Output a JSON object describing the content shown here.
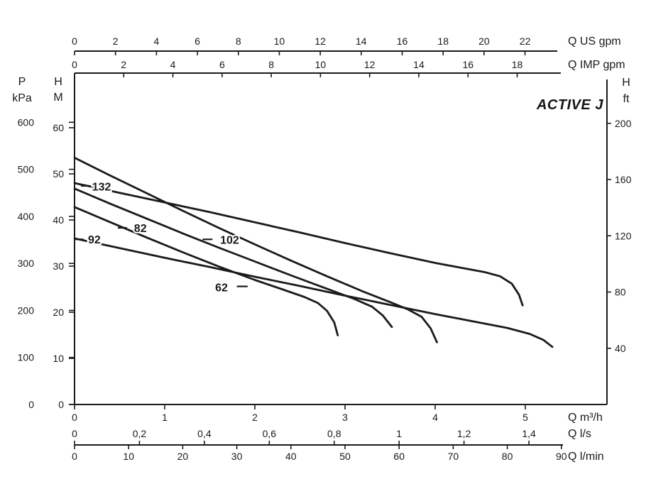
{
  "title": "ACTIVE J",
  "colors": {
    "ink": "#1a1a1a",
    "background": "#ffffff"
  },
  "chart_data": {
    "type": "line",
    "title": "ACTIVE J",
    "x_base_unit": "m³/h",
    "y_base_unit": "m",
    "x_range_m3h": [
      0,
      5.9
    ],
    "y_range_m": [
      0,
      71.8
    ],
    "grid": false,
    "legend": "inline-curve-labels",
    "flow_axes": [
      {
        "id": "us_gpm",
        "label": "Q US gpm",
        "position": "top1",
        "m3h_per_unit": 0.22712,
        "tick_values": [
          0,
          2,
          4,
          6,
          8,
          10,
          12,
          14,
          16,
          18,
          20,
          22
        ],
        "ticks": [
          "0",
          "2",
          "4",
          "6",
          "8",
          "10",
          "12",
          "14",
          "16",
          "18",
          "20",
          "22"
        ]
      },
      {
        "id": "imp_gpm",
        "label": "Q IMP gpm",
        "position": "top2",
        "m3h_per_unit": 0.27276,
        "tick_values": [
          0,
          2,
          4,
          6,
          8,
          10,
          12,
          14,
          16,
          18
        ],
        "ticks": [
          "0",
          "2",
          "4",
          "6",
          "8",
          "10",
          "12",
          "14",
          "16",
          "18"
        ]
      },
      {
        "id": "m3h",
        "label": "Q m³/h",
        "position": "bottom1",
        "m3h_per_unit": 1,
        "tick_values": [
          0,
          1,
          2,
          3,
          4,
          5
        ],
        "ticks": [
          "0",
          "1",
          "2",
          "3",
          "4",
          "5"
        ]
      },
      {
        "id": "l_s",
        "label": "Q l/s",
        "position": "bottom2",
        "m3h_per_unit": 3.6,
        "tick_values": [
          0,
          0.2,
          0.4,
          0.6,
          0.8,
          1,
          1.2,
          1.4
        ],
        "ticks": [
          "0",
          "0,2",
          "0,4",
          "0,6",
          "0,8",
          "1",
          "1,2",
          "1,4"
        ]
      },
      {
        "id": "l_min",
        "label": "Q l/min",
        "position": "bottom3",
        "m3h_per_unit": 0.06,
        "tick_values": [
          0,
          10,
          20,
          30,
          40,
          50,
          60,
          70,
          80,
          90
        ],
        "ticks": [
          "0",
          "10",
          "20",
          "30",
          "40",
          "50",
          "60",
          "70",
          "80",
          "90"
        ]
      }
    ],
    "head_axes": [
      {
        "id": "kpa",
        "header": [
          "P",
          "kPa"
        ],
        "position": "left1",
        "m_per_unit": 0.101972,
        "tick_values": [
          0,
          100,
          200,
          300,
          400,
          500,
          600
        ],
        "ticks": [
          "0",
          "100",
          "200",
          "300",
          "400",
          "500",
          "600"
        ]
      },
      {
        "id": "m",
        "header": [
          "H",
          "M"
        ],
        "position": "left2",
        "m_per_unit": 1,
        "tick_values": [
          0,
          10,
          20,
          30,
          40,
          50,
          60
        ],
        "ticks": [
          "0",
          "10",
          "20",
          "30",
          "40",
          "50",
          "60"
        ]
      },
      {
        "id": "ft",
        "header": [
          "H",
          "ft"
        ],
        "position": "right",
        "m_per_unit": 0.3048,
        "tick_values": [
          40,
          80,
          120,
          160,
          200
        ],
        "ticks": [
          "40",
          "80",
          "120",
          "160",
          "200"
        ]
      }
    ],
    "series": [
      {
        "name": "102",
        "points": [
          [
            0,
            53.5
          ],
          [
            0.4,
            49.6
          ],
          [
            0.8,
            45.8
          ],
          [
            1.2,
            42.0
          ],
          [
            1.6,
            38.3
          ],
          [
            2.0,
            34.7
          ],
          [
            2.4,
            31.2
          ],
          [
            2.8,
            27.8
          ],
          [
            3.2,
            24.5
          ],
          [
            3.5,
            22.2
          ],
          [
            3.7,
            20.6
          ],
          [
            3.85,
            19.0
          ],
          [
            3.95,
            16.5
          ],
          [
            4.02,
            13.5
          ]
        ]
      },
      {
        "name": "132",
        "points": [
          [
            0,
            48.0
          ],
          [
            0.5,
            45.9
          ],
          [
            1.0,
            43.8
          ],
          [
            1.5,
            41.7
          ],
          [
            2.0,
            39.5
          ],
          [
            2.5,
            37.3
          ],
          [
            3.0,
            35.0
          ],
          [
            3.5,
            32.8
          ],
          [
            4.0,
            30.7
          ],
          [
            4.3,
            29.6
          ],
          [
            4.55,
            28.7
          ],
          [
            4.72,
            27.8
          ],
          [
            4.85,
            26.2
          ],
          [
            4.93,
            23.8
          ],
          [
            4.97,
            21.5
          ]
        ]
      },
      {
        "name": "82",
        "points": [
          [
            0,
            46.8
          ],
          [
            0.4,
            43.5
          ],
          [
            0.8,
            40.3
          ],
          [
            1.2,
            37.1
          ],
          [
            1.6,
            34.0
          ],
          [
            2.0,
            31.0
          ],
          [
            2.4,
            28.0
          ],
          [
            2.8,
            25.1
          ],
          [
            3.1,
            22.9
          ],
          [
            3.3,
            21.2
          ],
          [
            3.42,
            19.3
          ],
          [
            3.52,
            16.8
          ]
        ]
      },
      {
        "name": "62",
        "points": [
          [
            0,
            42.8
          ],
          [
            0.4,
            39.5
          ],
          [
            0.8,
            36.2
          ],
          [
            1.2,
            33.0
          ],
          [
            1.6,
            29.9
          ],
          [
            2.0,
            27.0
          ],
          [
            2.3,
            25.0
          ],
          [
            2.55,
            23.3
          ],
          [
            2.7,
            22.0
          ],
          [
            2.8,
            20.3
          ],
          [
            2.88,
            17.8
          ],
          [
            2.92,
            15.0
          ]
        ]
      },
      {
        "name": "92",
        "points": [
          [
            0,
            36.0
          ],
          [
            0.5,
            33.9
          ],
          [
            1.0,
            31.8
          ],
          [
            1.5,
            29.8
          ],
          [
            2.0,
            27.7
          ],
          [
            2.5,
            25.7
          ],
          [
            3.0,
            23.6
          ],
          [
            3.5,
            21.6
          ],
          [
            4.0,
            19.6
          ],
          [
            4.4,
            18.1
          ],
          [
            4.8,
            16.6
          ],
          [
            5.05,
            15.3
          ],
          [
            5.2,
            14.0
          ],
          [
            5.3,
            12.5
          ]
        ]
      }
    ],
    "series_labels": [
      {
        "text": "132",
        "q": 0.3,
        "h": 47.2,
        "dash_from": 0.07,
        "dash_to": 0.17,
        "dash_h": 47.4
      },
      {
        "text": "92",
        "q": 0.22,
        "h": 35.8,
        "dash_from": 0.01,
        "dash_to": 0.1,
        "dash_h": 35.8
      },
      {
        "text": "82",
        "q": 0.73,
        "h": 38.2,
        "dash_from": 0.48,
        "dash_to": 0.58,
        "dash_h": 38.3
      },
      {
        "text": "102",
        "q": 1.72,
        "h": 35.7,
        "dash_from": 1.42,
        "dash_to": 1.53,
        "dash_h": 35.8
      },
      {
        "text": "62",
        "q": 1.63,
        "h": 25.4,
        "dash_from": 1.8,
        "dash_to": 1.92,
        "dash_h": 25.6
      }
    ]
  }
}
